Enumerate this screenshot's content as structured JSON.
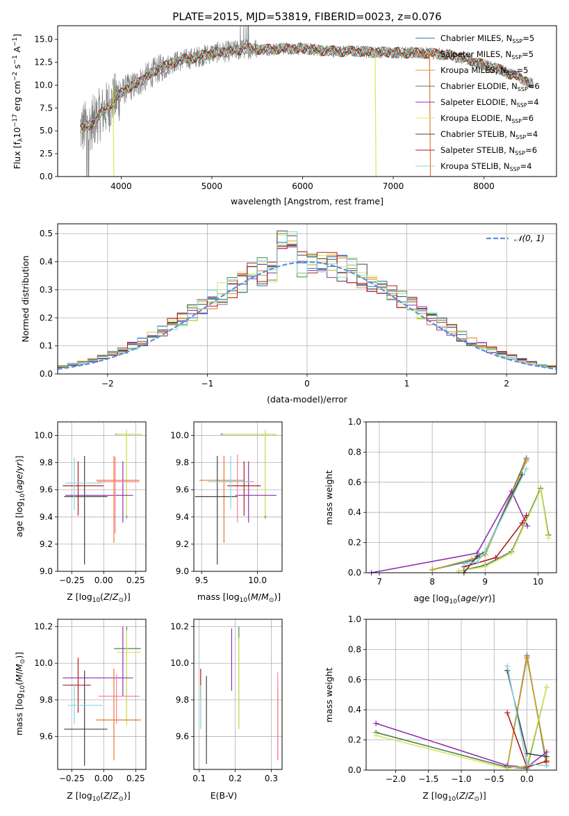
{
  "chart_data": [
    {
      "id": "spectrum",
      "type": "line",
      "title": "PLATE=2015, MJD=53819, FIBERID=0023, z=0.076",
      "xlabel": "wavelength [Angstrom, rest frame]",
      "ylabel": "Flux [f$_\\lambda$10$^{-17}$ erg cm$^{-2}$ s$^{-1}$ A$^{-1}$]",
      "ylabel_parts": [
        "Flux [f",
        "λ",
        "10",
        "−17",
        " erg cm",
        "−2",
        " s",
        "−1",
        " A",
        "−1",
        "]"
      ],
      "xlim": [
        3300,
        8800
      ],
      "ylim": [
        0,
        16.5
      ],
      "xticks": [
        4000,
        5000,
        6000,
        7000,
        8000
      ],
      "yticks": [
        0.0,
        2.5,
        5.0,
        7.5,
        10.0,
        12.5,
        15.0
      ],
      "legend_position": "top-right",
      "data_color": "#808080",
      "continuum": {
        "x": [
          3550,
          3650,
          3750,
          3850,
          3950,
          4050,
          4150,
          4250,
          4400,
          4600,
          4800,
          5000,
          5200,
          5400,
          5600,
          5800,
          6000,
          6200,
          6400,
          6600,
          6800,
          7000,
          7200,
          7400,
          7600,
          7800,
          8000,
          8200,
          8400,
          8550
        ],
        "y": [
          5.2,
          5.6,
          6.6,
          7.6,
          8.6,
          9.6,
          10.0,
          10.7,
          11.7,
          12.6,
          13.0,
          13.5,
          13.7,
          14.0,
          13.9,
          14.0,
          14.0,
          13.8,
          13.7,
          13.7,
          13.6,
          13.6,
          13.5,
          13.5,
          13.3,
          12.9,
          12.2,
          11.6,
          10.8,
          10.0
        ]
      },
      "series": [
        {
          "name": "Chabrier MILES, N$_{SSP}$=5",
          "name_base": "Chabrier MILES, N",
          "name_sub": "SSP",
          "name_tail": "=5",
          "color": "#1f77b4"
        },
        {
          "name": "Salpeter MILES, N$_{SSP}$=5",
          "name_base": "Salpeter MILES, N",
          "name_sub": "SSP",
          "name_tail": "=5",
          "color": "#e6762a"
        },
        {
          "name": "Kroupa MILES, N$_{SSP}$=5",
          "name_base": "Kroupa MILES, N",
          "name_sub": "SSP",
          "name_tail": "=5",
          "color": "#c9a227"
        },
        {
          "name": "Chabrier ELODIE, N$_{SSP}$=6",
          "name_base": "Chabrier ELODIE, N",
          "name_sub": "SSP",
          "name_tail": "=6",
          "color": "#4f7f4f"
        },
        {
          "name": "Salpeter ELODIE, N$_{SSP}$=4",
          "name_base": "Salpeter ELODIE, N",
          "name_sub": "SSP",
          "name_tail": "=4",
          "color": "#8e2fb0"
        },
        {
          "name": "Kroupa ELODIE, N$_{SSP}$=6",
          "name_base": "Kroupa ELODIE, N",
          "name_sub": "SSP",
          "name_tail": "=6",
          "color": "#d4e85a"
        },
        {
          "name": "Chabrier STELIB, N$_{SSP}$=4",
          "name_base": "Chabrier STELIB, N",
          "name_sub": "SSP",
          "name_tail": "=4",
          "color": "#404040"
        },
        {
          "name": "Salpeter STELIB, N$_{SSP}$=6",
          "name_base": "Salpeter STELIB, N",
          "name_sub": "SSP",
          "name_tail": "=6",
          "color": "#b31b1b"
        },
        {
          "name": "Kroupa STELIB, N$_{SSP}$=4",
          "name_base": "Kroupa STELIB, N",
          "name_sub": "SSP",
          "name_tail": "=4",
          "color": "#7fd6e0"
        }
      ]
    },
    {
      "id": "residuals",
      "type": "histogram",
      "xlabel": "(data-model)/error",
      "ylabel": "Normed distribution",
      "xlim": [
        -2.5,
        2.5
      ],
      "ylim": [
        0,
        0.535
      ],
      "xticks": [
        -2,
        -1,
        0,
        1,
        2
      ],
      "xtick_labels": [
        "−2",
        "−1",
        "0",
        "1",
        "2"
      ],
      "yticks": [
        0.0,
        0.1,
        0.2,
        0.3,
        0.4,
        0.5
      ],
      "grid": true,
      "legend_position": "top-right",
      "reference": {
        "name": "$\\mathcal{N}(0,1)$",
        "label": "𝒩(0, 1)",
        "color": "#5b8fd6",
        "mu": 0,
        "sigma": 1
      },
      "bin_width": 0.1
    },
    {
      "id": "age-vs-Z",
      "type": "errorbar",
      "xlabel": "Z [log$_{10}$(Z/Z$_\\odot$)]",
      "ylabel": "age  [log$_{10}$(age/yr)]",
      "xlim": [
        -0.36,
        0.33
      ],
      "ylim": [
        9.0,
        10.1
      ],
      "xticks": [
        -0.25,
        0.0,
        0.25
      ],
      "xtick_labels": [
        "−0.25",
        "0.00",
        "0.25"
      ],
      "yticks": [
        9.0,
        9.2,
        9.4,
        9.6,
        9.8,
        10.0
      ],
      "points": [
        {
          "x": 0.18,
          "xerr": [
            0.09,
            0.12
          ],
          "y": 10.01,
          "yerr": [
            0.62,
            0.03
          ],
          "color": "#4f7f4f"
        },
        {
          "x": 0.18,
          "xerr": [
            0.08,
            0.12
          ],
          "y": 10.01,
          "yerr": [
            0.6,
            0.03
          ],
          "color": "#d4e85a"
        },
        {
          "x": 0.15,
          "xerr": [
            0.45,
            0.08
          ],
          "y": 9.56,
          "yerr": [
            0.2,
            0.25
          ],
          "color": "#8e2fb0"
        },
        {
          "x": 0.08,
          "xerr": [
            0.14,
            0.2
          ],
          "y": 9.67,
          "yerr": [
            0.46,
            0.18
          ],
          "color": "#e6762a"
        },
        {
          "x": 0.09,
          "xerr": [
            0.14,
            0.19
          ],
          "y": 9.66,
          "yerr": [
            0.38,
            0.18
          ],
          "color": "#ff7f9e"
        },
        {
          "x": -0.15,
          "xerr": [
            0.16,
            0.18
          ],
          "y": 9.55,
          "yerr": [
            0.5,
            0.3
          ],
          "color": "#404040"
        },
        {
          "x": -0.2,
          "xerr": [
            0.12,
            0.2
          ],
          "y": 9.63,
          "yerr": [
            0.22,
            0.18
          ],
          "color": "#b31b1b"
        },
        {
          "x": -0.23,
          "xerr": [
            0.07,
            0.22
          ],
          "y": 9.65,
          "yerr": [
            0.2,
            0.19
          ],
          "color": "#7fd6e0"
        }
      ]
    },
    {
      "id": "age-vs-mass",
      "type": "errorbar",
      "xlabel": "mass [log$_{10}$(M/M$_\\odot$)]",
      "ylabel": "",
      "xlim": [
        9.43,
        10.22
      ],
      "ylim": [
        9.0,
        10.1
      ],
      "xticks": [
        9.5,
        10.0
      ],
      "xtick_labels": [
        "9.5",
        "10.0"
      ],
      "yticks": [
        9.0,
        9.2,
        9.4,
        9.6,
        9.8,
        10.0
      ],
      "points": [
        {
          "x": 10.07,
          "xerr": [
            0.4,
            0.1
          ],
          "y": 10.01,
          "yerr": [
            0.62,
            0.03
          ],
          "color": "#4f7f4f"
        },
        {
          "x": 10.07,
          "xerr": [
            0.38,
            0.1
          ],
          "y": 10.01,
          "yerr": [
            0.6,
            0.03
          ],
          "color": "#d4e85a"
        },
        {
          "x": 9.92,
          "xerr": [
            0.12,
            0.25
          ],
          "y": 9.56,
          "yerr": [
            0.2,
            0.25
          ],
          "color": "#8e2fb0"
        },
        {
          "x": 9.7,
          "xerr": [
            0.22,
            0.18
          ],
          "y": 9.67,
          "yerr": [
            0.46,
            0.18
          ],
          "color": "#e6762a"
        },
        {
          "x": 9.82,
          "xerr": [
            0.2,
            0.15
          ],
          "y": 9.66,
          "yerr": [
            0.3,
            0.2
          ],
          "color": "#ff7f9e"
        },
        {
          "x": 9.64,
          "xerr": [
            0.2,
            0.18
          ],
          "y": 9.55,
          "yerr": [
            0.5,
            0.3
          ],
          "color": "#404040"
        },
        {
          "x": 9.88,
          "xerr": [
            0.15,
            0.15
          ],
          "y": 9.63,
          "yerr": [
            0.22,
            0.18
          ],
          "color": "#b31b1b"
        },
        {
          "x": 9.76,
          "xerr": [
            0.2,
            0.18
          ],
          "y": 9.66,
          "yerr": [
            0.2,
            0.19
          ],
          "color": "#7fd6e0"
        }
      ]
    },
    {
      "id": "weight-vs-age",
      "type": "line",
      "xlabel": "age  [log$_{10}$(age/yr)]",
      "ylabel": "mass weight",
      "xlim": [
        6.75,
        10.35
      ],
      "ylim": [
        0,
        1.0
      ],
      "xticks": [
        7,
        8,
        9,
        10
      ],
      "yticks": [
        0.0,
        0.2,
        0.4,
        0.6,
        0.8,
        1.0
      ],
      "grid": true,
      "series": [
        {
          "color": "#1f77b4",
          "x": [
            8.0,
            8.75,
            9.0,
            9.78
          ],
          "y": [
            0.02,
            0.08,
            0.12,
            0.76
          ]
        },
        {
          "color": "#e6762a",
          "x": [
            8.0,
            8.75,
            9.0,
            9.78
          ],
          "y": [
            0.02,
            0.09,
            0.12,
            0.75
          ]
        },
        {
          "color": "#c9a227",
          "x": [
            8.0,
            8.75,
            9.0,
            9.78
          ],
          "y": [
            0.02,
            0.09,
            0.12,
            0.74
          ]
        },
        {
          "color": "#4f7f4f",
          "x": [
            8.5,
            9.0,
            9.5,
            10.05,
            10.2
          ],
          "y": [
            0.01,
            0.05,
            0.14,
            0.56,
            0.25
          ]
        },
        {
          "color": "#8e2fb0",
          "x": [
            6.85,
            8.85,
            9.5,
            9.8
          ],
          "y": [
            0.0,
            0.13,
            0.54,
            0.31
          ]
        },
        {
          "color": "#d4e85a",
          "x": [
            8.5,
            9.0,
            9.5,
            10.05,
            10.2
          ],
          "y": [
            0.01,
            0.04,
            0.13,
            0.55,
            0.23
          ]
        },
        {
          "color": "#404040",
          "x": [
            8.6,
            8.85,
            9.0,
            9.7
          ],
          "y": [
            0.0,
            0.11,
            0.14,
            0.65
          ]
        },
        {
          "color": "#b31b1b",
          "x": [
            8.6,
            9.2,
            9.7,
            9.78
          ],
          "y": [
            0.04,
            0.1,
            0.33,
            0.38
          ]
        },
        {
          "color": "#7fd6e0",
          "x": [
            8.6,
            8.85,
            9.0,
            9.78
          ],
          "y": [
            0.06,
            0.07,
            0.14,
            0.69
          ]
        }
      ]
    },
    {
      "id": "mass-vs-Z",
      "type": "errorbar",
      "xlabel": "Z [log$_{10}$(Z/Z$_\\odot$)]",
      "ylabel": "mass [log$_{10}$(M/M$_\\odot$)]",
      "xlim": [
        -0.36,
        0.33
      ],
      "ylim": [
        9.42,
        10.24
      ],
      "xticks": [
        -0.25,
        0.0,
        0.25
      ],
      "xtick_labels": [
        "−0.25",
        "0.00",
        "0.25"
      ],
      "yticks": [
        9.6,
        9.8,
        10.0,
        10.2
      ],
      "points": [
        {
          "x": 0.18,
          "xerr": [
            0.1,
            0.11
          ],
          "y": 10.08,
          "yerr": [
            0.4,
            0.12
          ],
          "color": "#4f7f4f"
        },
        {
          "x": 0.18,
          "xerr": [
            0.08,
            0.11
          ],
          "y": 10.06,
          "yerr": [
            0.4,
            0.12
          ],
          "color": "#d4e85a"
        },
        {
          "x": 0.15,
          "xerr": [
            0.47,
            0.08
          ],
          "y": 9.92,
          "yerr": [
            0.1,
            0.28
          ],
          "color": "#8e2fb0"
        },
        {
          "x": 0.08,
          "xerr": [
            0.14,
            0.21
          ],
          "y": 9.69,
          "yerr": [
            0.22,
            0.28
          ],
          "color": "#e6762a"
        },
        {
          "x": 0.1,
          "xerr": [
            0.14,
            0.18
          ],
          "y": 9.82,
          "yerr": [
            0.15,
            0.12
          ],
          "color": "#ff7f9e"
        },
        {
          "x": -0.15,
          "xerr": [
            0.16,
            0.18
          ],
          "y": 9.64,
          "yerr": [
            0.2,
            0.32
          ],
          "color": "#404040"
        },
        {
          "x": -0.2,
          "xerr": [
            0.12,
            0.1
          ],
          "y": 9.88,
          "yerr": [
            0.15,
            0.15
          ],
          "color": "#b31b1b"
        },
        {
          "x": -0.23,
          "xerr": [
            0.05,
            0.22
          ],
          "y": 9.77,
          "yerr": [
            0.1,
            0.12
          ],
          "color": "#7fd6e0"
        }
      ]
    },
    {
      "id": "mass-vs-EBV",
      "type": "errorbar",
      "xlabel": "E(B-V)",
      "ylabel": "",
      "xlim": [
        0.085,
        0.33
      ],
      "ylim": [
        9.42,
        10.24
      ],
      "xticks": [
        0.1,
        0.2,
        0.3
      ],
      "xtick_labels": [
        "0.1",
        "0.2",
        "0.3"
      ],
      "yticks": [
        9.6,
        9.8,
        10.0,
        10.2
      ],
      "points": [
        {
          "x": 0.21,
          "xerr": [
            0,
            0
          ],
          "y": 10.0,
          "yerr": [
            0.36,
            0.2
          ],
          "color": "#4f7f4f"
        },
        {
          "x": 0.21,
          "xerr": [
            0,
            0
          ],
          "y": 9.99,
          "yerr": [
            0.35,
            0.15
          ],
          "color": "#d4e85a"
        },
        {
          "x": 0.19,
          "xerr": [
            0,
            0
          ],
          "y": 10.0,
          "yerr": [
            0.15,
            0.19
          ],
          "color": "#8e2fb0"
        },
        {
          "x": 0.318,
          "xerr": [
            0,
            0
          ],
          "y": 9.67,
          "yerr": [
            0.2,
            0.2
          ],
          "color": "#e6762a"
        },
        {
          "x": 0.318,
          "xerr": [
            0,
            0
          ],
          "y": 9.72,
          "yerr": [
            0.24,
            0.23
          ],
          "color": "#ff7f9e"
        },
        {
          "x": 0.12,
          "xerr": [
            0,
            0
          ],
          "y": 9.7,
          "yerr": [
            0.25,
            0.23
          ],
          "color": "#404040"
        },
        {
          "x": 0.104,
          "xerr": [
            0,
            0
          ],
          "y": 9.9,
          "yerr": [
            0.1,
            0.07
          ],
          "color": "#b31b1b"
        },
        {
          "x": 0.104,
          "xerr": [
            0,
            0
          ],
          "y": 9.78,
          "yerr": [
            0.14,
            0.1
          ],
          "color": "#7fd6e0"
        }
      ]
    },
    {
      "id": "weight-vs-Z",
      "type": "line",
      "xlabel": "Z [log$_{10}$(Z/Z$_\\odot$)]",
      "ylabel": "mass weight",
      "xlim": [
        -2.45,
        0.45
      ],
      "ylim": [
        0,
        1.0
      ],
      "xticks": [
        -2.0,
        -1.5,
        -1.0,
        -0.5,
        0.0
      ],
      "xtick_labels": [
        "−2.0",
        "−1.5",
        "−1.0",
        "−0.5",
        "0.0"
      ],
      "yticks": [
        0.0,
        0.2,
        0.4,
        0.6,
        0.8,
        1.0
      ],
      "grid": true,
      "series": [
        {
          "color": "#1f77b4",
          "x": [
            -0.3,
            0.0,
            0.3
          ],
          "y": [
            0.02,
            0.76,
            0.03
          ]
        },
        {
          "color": "#e6762a",
          "x": [
            -0.3,
            0.0,
            0.3
          ],
          "y": [
            0.02,
            0.75,
            0.05
          ]
        },
        {
          "color": "#c9a227",
          "x": [
            -0.3,
            0.0,
            0.3
          ],
          "y": [
            0.02,
            0.74,
            0.06
          ]
        },
        {
          "color": "#4f7f4f",
          "x": [
            -2.3,
            -0.3,
            0.0,
            0.3
          ],
          "y": [
            0.25,
            0.02,
            0.01,
            0.55
          ]
        },
        {
          "color": "#8e2fb0",
          "x": [
            -2.3,
            -0.3,
            0.0,
            0.3
          ],
          "y": [
            0.31,
            0.03,
            0.02,
            0.12
          ]
        },
        {
          "color": "#d4e85a",
          "x": [
            -2.3,
            -0.3,
            0.0,
            0.3
          ],
          "y": [
            0.23,
            0.01,
            0.03,
            0.55
          ]
        },
        {
          "color": "#404040",
          "x": [
            -0.3,
            0.0,
            0.3
          ],
          "y": [
            0.66,
            0.11,
            0.09
          ]
        },
        {
          "color": "#b31b1b",
          "x": [
            -0.3,
            0.0,
            0.3
          ],
          "y": [
            0.38,
            0.02,
            0.06
          ]
        },
        {
          "color": "#7fd6e0",
          "x": [
            -0.3,
            0.0,
            0.3
          ],
          "y": [
            0.69,
            0.04,
            0.03
          ]
        }
      ]
    }
  ]
}
